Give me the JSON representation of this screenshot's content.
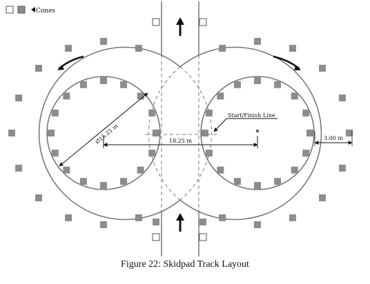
{
  "legend": {
    "label": "Cones",
    "colors": {
      "cone_fill": "#808080",
      "cone_outline": "#555555"
    }
  },
  "labels": {
    "diameter": "Ø15.25 m",
    "center_distance": "18.25 m",
    "lane_width": "3.00 m",
    "start_finish": "Start/Finish Line"
  },
  "caption": "Figure 22: Skidpad Track Layout",
  "colors": {
    "track_line": "#777777",
    "cone": "#8c8c8c",
    "ink": "#111111",
    "dash": "#777777"
  }
}
